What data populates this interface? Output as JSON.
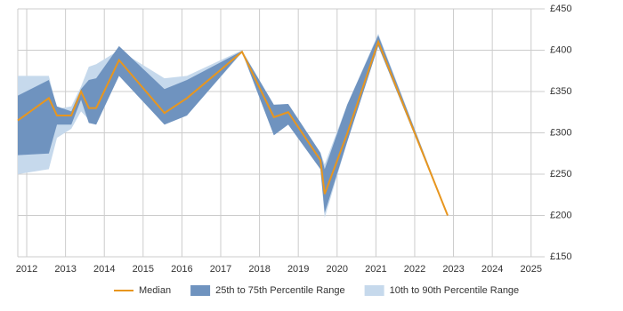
{
  "chart_data": {
    "type": "line",
    "x": [
      2011.77,
      2012.57,
      2012.78,
      2013.15,
      2013.4,
      2013.6,
      2013.79,
      2014.38,
      2015.55,
      2016.13,
      2017.55,
      2018.37,
      2018.74,
      2019.57,
      2019.68,
      2020.26,
      2021.06,
      2022.85
    ],
    "series": [
      {
        "name": "10th to 90th Percentile Range",
        "color": "#c6d9ec",
        "low": [
          250,
          256,
          294,
          305,
          326,
          316,
          310,
          369,
          310,
          321,
          397,
          297,
          310,
          256,
          197,
          289,
          405,
          199
        ],
        "high": [
          369,
          369,
          329,
          332,
          356,
          380,
          383,
          400,
          366,
          369,
          400,
          334,
          335,
          276,
          262,
          334,
          420,
          201
        ]
      },
      {
        "name": "25th to 75th Percentile Range",
        "color": "#6f93bf",
        "low": [
          273,
          275,
          310,
          310,
          340,
          312,
          310,
          369,
          310,
          321,
          398,
          297,
          310,
          256,
          203,
          289,
          405,
          199
        ],
        "high": [
          345,
          364,
          332,
          326,
          353,
          364,
          366,
          405,
          353,
          364,
          399,
          334,
          335,
          276,
          256,
          334,
          418,
          201
        ]
      },
      {
        "name": "Median",
        "color": "#e8961e",
        "values": [
          315,
          342,
          321,
          321,
          350,
          330,
          330,
          388,
          324,
          342,
          398,
          319,
          325,
          267,
          226,
          299,
          410,
          200
        ]
      }
    ],
    "xlim": [
      2011.77,
      2025.35
    ],
    "xticks": [
      2012,
      2013,
      2014,
      2015,
      2016,
      2017,
      2018,
      2019,
      2020,
      2021,
      2022,
      2023,
      2024,
      2025
    ],
    "ylim": [
      150,
      450
    ],
    "yticks": [
      {
        "value": 150,
        "label": "£150"
      },
      {
        "value": 200,
        "label": "£200"
      },
      {
        "value": 250,
        "label": "£250"
      },
      {
        "value": 300,
        "label": "£300"
      },
      {
        "value": 350,
        "label": "£350"
      },
      {
        "value": 400,
        "label": "£400"
      },
      {
        "value": 450,
        "label": "£450"
      }
    ],
    "grid": true,
    "legend": "bottom"
  }
}
